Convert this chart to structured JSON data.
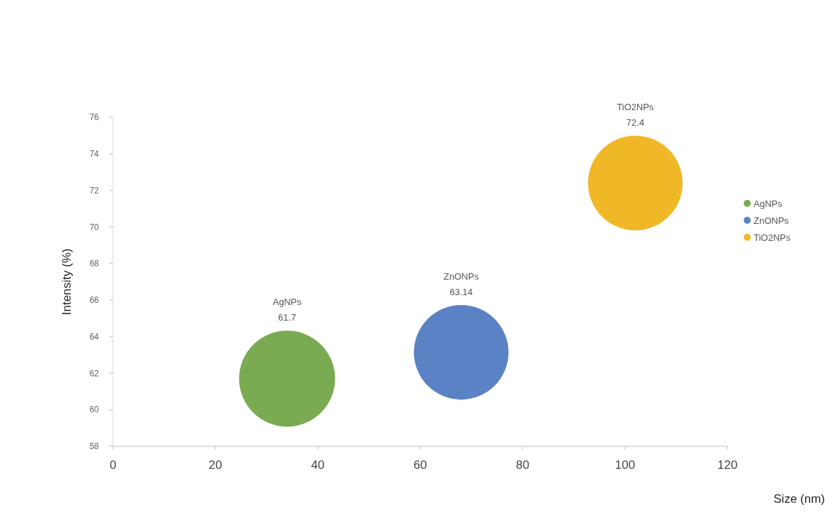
{
  "chart_data": {
    "type": "bubble",
    "xlabel": "Size (nm)",
    "ylabel": "Intensity (%)",
    "xlim": [
      0,
      120
    ],
    "xticks": [
      0,
      20,
      40,
      60,
      80,
      100,
      120
    ],
    "ylim": [
      58,
      76
    ],
    "yticks": [
      58,
      60,
      62,
      64,
      66,
      68,
      70,
      72,
      74,
      76
    ],
    "grid": false,
    "legend": "right",
    "marker": "circle",
    "data_labels": true,
    "series": [
      {
        "name": "AgNPs",
        "color": "#7aab52",
        "x": [
          34
        ],
        "values": [
          61.7
        ],
        "sizes": [
          1
        ]
      },
      {
        "name": "ZnONPs",
        "color": "#5b82c4",
        "x": [
          68
        ],
        "values": [
          63.14
        ],
        "sizes": [
          0.97
        ]
      },
      {
        "name": "TiO2NPs",
        "color": "#f0b726",
        "x": [
          102
        ],
        "values": [
          72.4
        ],
        "sizes": [
          0.97
        ]
      }
    ]
  }
}
